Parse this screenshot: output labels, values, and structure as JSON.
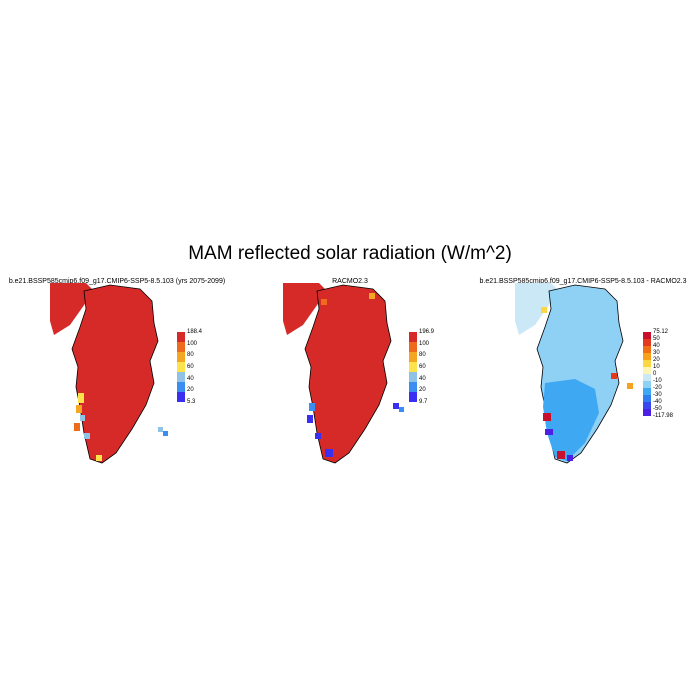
{
  "title": "MAM reflected solar radiation (W/m^2)",
  "panels": [
    {
      "title": "b.e21.BSSP585cmip6.f09_g17.CMIP6-SSP5-8.5.103 (yrs 2075-2099)",
      "colorbar": {
        "labels": [
          "188.4",
          "100",
          "80",
          "60",
          "40",
          "20",
          "5.3"
        ],
        "colors": [
          "#d62a28",
          "#ee6a1c",
          "#f5a623",
          "#fce34b",
          "#8fc2e6",
          "#3a8ef2",
          "#3a2ff0"
        ]
      }
    },
    {
      "title": "RACMO2.3",
      "colorbar": {
        "labels": [
          "196.9",
          "100",
          "80",
          "60",
          "40",
          "20",
          "9.7"
        ],
        "colors": [
          "#d62a28",
          "#ee6a1c",
          "#f5a623",
          "#fce34b",
          "#8fc2e6",
          "#3a8ef2",
          "#3a2ff0"
        ]
      }
    },
    {
      "title": "b.e21.BSSP585cmip6.f09_g17.CMIP6-SSP5-8.5.103 - RACMO2.3",
      "colorbar": {
        "labels": [
          "75.12",
          "50",
          "40",
          "30",
          "20",
          "10",
          "0",
          "-10",
          "-20",
          "-30",
          "-40",
          "-50",
          "-117.98"
        ],
        "colors": [
          "#c8102e",
          "#e33a1f",
          "#f06e14",
          "#f7a11c",
          "#fbd743",
          "#fdf5b3",
          "#cbe8f7",
          "#8fd0f5",
          "#3fa8f3",
          "#2f7ef0",
          "#3b47ee",
          "#4b1fe6"
        ]
      }
    }
  ]
}
